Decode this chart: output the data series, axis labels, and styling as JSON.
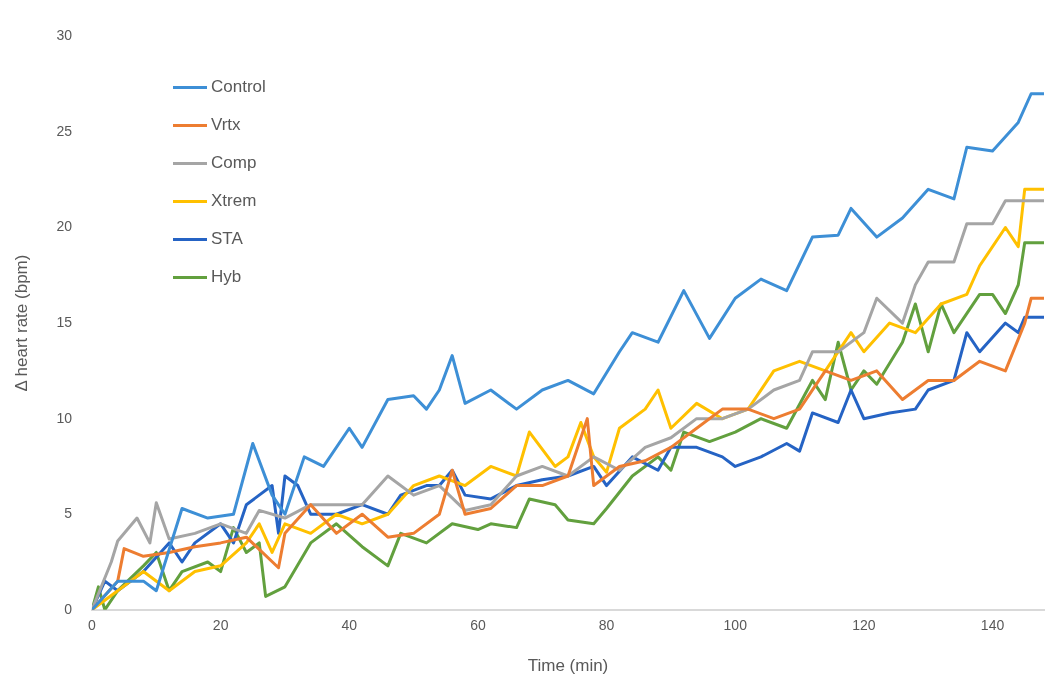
{
  "chart_data": {
    "type": "line",
    "xlabel": "Time (min)",
    "ylabel": "Δ heart rate (bpm)",
    "xlim": [
      0,
      148
    ],
    "xticks": [
      0,
      20,
      40,
      60,
      80,
      100,
      120,
      140
    ],
    "ylim": [
      0,
      30
    ],
    "yticks": [
      0,
      5,
      10,
      15,
      20,
      25,
      30
    ],
    "grid": false,
    "legend": "top left",
    "marker": "none",
    "line_style": "solid",
    "series": [
      {
        "name": "Control",
        "color": "#3d8fd6",
        "x": [
          0,
          4,
          8,
          10,
          14,
          18,
          22,
          25,
          28,
          30,
          33,
          36,
          40,
          42,
          46,
          50,
          52,
          54,
          56,
          58,
          62,
          66,
          70,
          74,
          78,
          82,
          84,
          88,
          92,
          96,
          100,
          104,
          108,
          112,
          116,
          118,
          122,
          126,
          130,
          134,
          136,
          140,
          144,
          146,
          148
        ],
        "values": [
          0,
          1.5,
          1.5,
          1,
          5.3,
          4.8,
          5,
          8.7,
          6,
          5,
          8,
          7.5,
          9.5,
          8.5,
          11,
          11.2,
          10.5,
          11.5,
          13.3,
          10.8,
          11.5,
          10.5,
          11.5,
          12,
          11.3,
          13.5,
          14.5,
          14,
          16.7,
          14.2,
          16.3,
          17.3,
          16.7,
          19.5,
          19.6,
          21,
          19.5,
          20.5,
          22,
          21.5,
          24.2,
          24,
          25.5,
          27,
          27
        ]
      },
      {
        "name": "Vrtx",
        "color": "#ed7d31",
        "x": [
          0,
          4,
          5,
          8,
          12,
          16,
          20,
          24,
          29,
          30,
          34,
          38,
          42,
          46,
          50,
          54,
          56,
          58,
          62,
          66,
          70,
          74,
          77,
          78,
          82,
          86,
          90,
          94,
          98,
          102,
          106,
          110,
          114,
          118,
          122,
          126,
          130,
          134,
          138,
          142,
          145,
          146,
          148
        ],
        "values": [
          0,
          1.5,
          3.2,
          2.8,
          3,
          3.3,
          3.5,
          3.8,
          2.2,
          4,
          5.5,
          4,
          5,
          3.8,
          4,
          5,
          7.3,
          5,
          5.3,
          6.5,
          6.5,
          7,
          10,
          6.5,
          7.5,
          7.8,
          8.5,
          9.5,
          10.5,
          10.5,
          10,
          10.5,
          12.5,
          12,
          12.5,
          11,
          12,
          12,
          13,
          12.5,
          15,
          16.3,
          16.3
        ]
      },
      {
        "name": "Comp",
        "color": "#a5a5a5",
        "x": [
          0,
          3,
          4,
          7,
          9,
          10,
          12,
          16,
          20,
          24,
          26,
          30,
          34,
          38,
          42,
          46,
          50,
          54,
          58,
          62,
          66,
          70,
          74,
          78,
          82,
          86,
          90,
          94,
          98,
          102,
          106,
          110,
          112,
          116,
          120,
          122,
          126,
          128,
          130,
          134,
          136,
          140,
          142,
          148
        ],
        "values": [
          0,
          2.5,
          3.6,
          4.8,
          3.5,
          5.6,
          3.7,
          4,
          4.5,
          4,
          5.2,
          4.8,
          5.5,
          5.5,
          5.5,
          7,
          6,
          6.5,
          5.2,
          5.5,
          7,
          7.5,
          7,
          8,
          7.3,
          8.5,
          9,
          10,
          10,
          10.5,
          11.5,
          12,
          13.5,
          13.5,
          14.5,
          16.3,
          15,
          17,
          18.2,
          18.2,
          20.2,
          20.2,
          21.4,
          21.4
        ]
      },
      {
        "name": "Xtrem",
        "color": "#ffc000",
        "x": [
          0,
          4,
          8,
          12,
          16,
          20,
          24,
          26,
          28,
          30,
          34,
          38,
          42,
          46,
          50,
          54,
          58,
          62,
          66,
          68,
          72,
          74,
          76,
          78,
          80,
          82,
          86,
          88,
          90,
          94,
          98,
          102,
          106,
          110,
          114,
          118,
          120,
          124,
          128,
          132,
          136,
          138,
          142,
          144,
          145,
          148
        ],
        "values": [
          0,
          1,
          2,
          1,
          2,
          2.3,
          3.5,
          4.5,
          3,
          4.5,
          4,
          5,
          4.5,
          5,
          6.5,
          7,
          6.5,
          7.5,
          7,
          9.3,
          7.5,
          8,
          9.8,
          8,
          7.2,
          9.5,
          10.5,
          11.5,
          9.5,
          10.8,
          10,
          10.5,
          12.5,
          13,
          12.5,
          14.5,
          13.5,
          15,
          14.5,
          16,
          16.5,
          18,
          20,
          19,
          22,
          22
        ]
      },
      {
        "name": "STA",
        "color": "#2563c4",
        "x": [
          0,
          2,
          4,
          8,
          12,
          14,
          16,
          20,
          22,
          24,
          28,
          29,
          30,
          32,
          34,
          38,
          42,
          46,
          48,
          52,
          54,
          56,
          58,
          62,
          66,
          70,
          74,
          78,
          80,
          84,
          88,
          90,
          94,
          98,
          100,
          104,
          108,
          110,
          112,
          116,
          118,
          120,
          124,
          128,
          130,
          134,
          136,
          138,
          142,
          144,
          145,
          148
        ],
        "values": [
          0,
          1.5,
          1,
          2,
          3.5,
          2.5,
          3.5,
          4.5,
          3.5,
          5.5,
          6.5,
          4,
          7,
          6.5,
          5,
          5,
          5.5,
          5,
          6,
          6.5,
          6.5,
          7.3,
          6,
          5.8,
          6.5,
          6.8,
          7,
          7.5,
          6.5,
          8,
          7.3,
          8.5,
          8.5,
          8,
          7.5,
          8,
          8.7,
          8.3,
          10.3,
          9.8,
          11.5,
          10,
          10.3,
          10.5,
          11.5,
          12,
          14.5,
          13.5,
          15,
          14.5,
          15.3,
          15.3
        ]
      },
      {
        "name": "Hyb",
        "color": "#62a03e",
        "x": [
          0,
          1,
          2,
          4,
          8,
          10,
          12,
          14,
          18,
          20,
          22,
          24,
          26,
          27,
          30,
          34,
          38,
          42,
          46,
          48,
          52,
          56,
          60,
          62,
          66,
          68,
          72,
          74,
          78,
          80,
          84,
          88,
          90,
          92,
          96,
          100,
          104,
          108,
          112,
          114,
          116,
          118,
          120,
          122,
          126,
          128,
          130,
          132,
          134,
          138,
          140,
          142,
          144,
          145,
          148
        ],
        "values": [
          0,
          1.2,
          0,
          1,
          2.3,
          3,
          1,
          2,
          2.5,
          2,
          4.3,
          3,
          3.5,
          0.7,
          1.2,
          3.5,
          4.5,
          3.3,
          2.3,
          4,
          3.5,
          4.5,
          4.2,
          4.5,
          4.3,
          5.8,
          5.5,
          4.7,
          4.5,
          5.3,
          7,
          8,
          7.3,
          9.3,
          8.8,
          9.3,
          10,
          9.5,
          12,
          11,
          14,
          11.5,
          12.5,
          11.8,
          14,
          16,
          13.5,
          16,
          14.5,
          16.5,
          16.5,
          15.5,
          17,
          19.2,
          19.2
        ]
      }
    ]
  }
}
